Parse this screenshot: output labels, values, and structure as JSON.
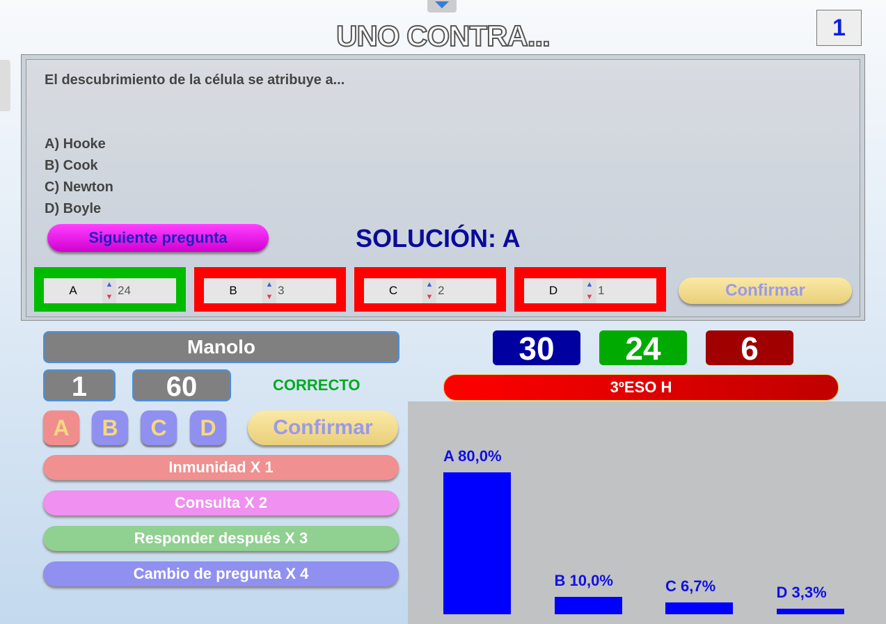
{
  "title": "UNO CONTRA...",
  "question_number": "1",
  "question": {
    "text": "El descubrimiento de la célula se atribuye a...",
    "options": [
      "A) Hooke",
      "B) Cook",
      "C) Newton",
      "D) Boyle"
    ]
  },
  "next_label": "Siguiente pregunta",
  "solution": "SOLUCIÓN: A",
  "answer_counts": [
    {
      "letter": "A",
      "value": "24",
      "color": "#00bb00"
    },
    {
      "letter": "B",
      "value": "3",
      "color": "#ff0000"
    },
    {
      "letter": "C",
      "value": "2",
      "color": "#ff0000"
    },
    {
      "letter": "D",
      "value": "1",
      "color": "#ff0000"
    }
  ],
  "confirm_label": "Confirmar",
  "player": {
    "name": "Manolo",
    "level": "1",
    "points": "60",
    "status": "CORRECTO"
  },
  "letters": [
    "A",
    "B",
    "C",
    "D"
  ],
  "lifelines": [
    "Inmunidad X 1",
    "Consulta X 2",
    "Responder después X 3",
    "Cambio de pregunta X 4"
  ],
  "scores": {
    "total": "30",
    "correct": "24",
    "wrong": "6"
  },
  "group": "3ºESO H",
  "chart_data": {
    "type": "bar",
    "categories": [
      "A",
      "B",
      "C",
      "D"
    ],
    "values": [
      80.0,
      10.0,
      6.7,
      3.3
    ],
    "labels": [
      "A 80,0%",
      "B 10,0%",
      "C 6,7%",
      "D 3,3%"
    ],
    "ylim": [
      0,
      100
    ],
    "color": "#0000ff"
  }
}
